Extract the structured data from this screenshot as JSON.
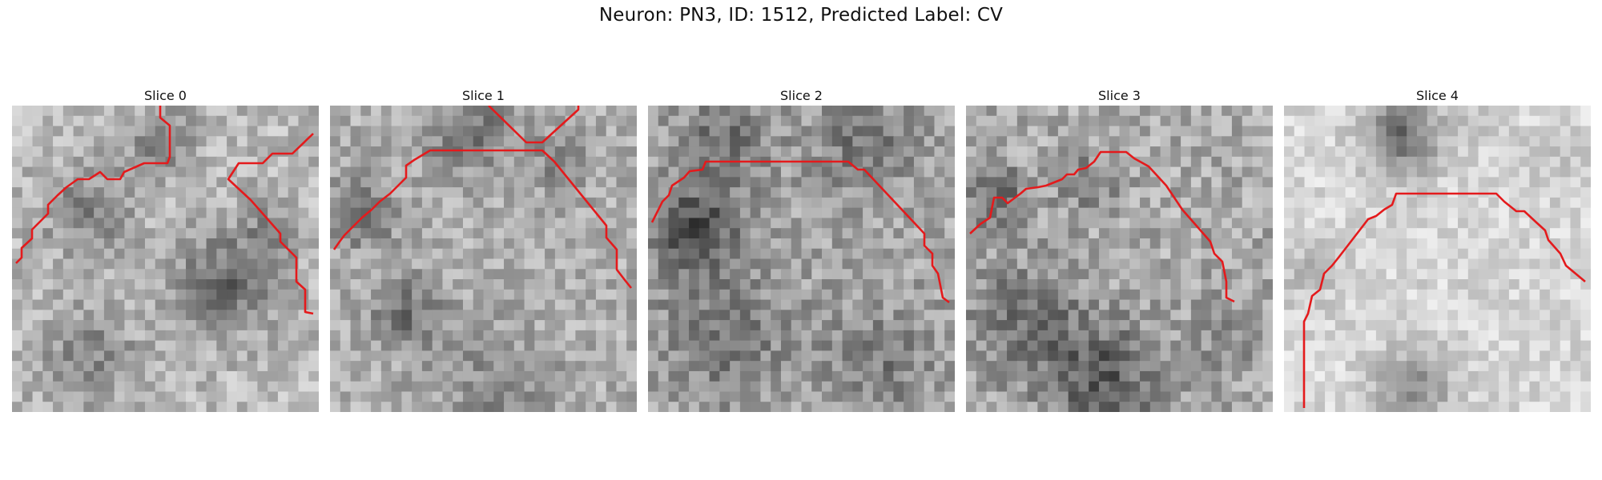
{
  "figure": {
    "title": "Neuron: PN3, ID: 1512, Predicted Label: CV"
  },
  "panels": [
    {
      "label": "Slice 0",
      "trace_color": "#e41a1c"
    },
    {
      "label": "Slice 1",
      "trace_color": "#e41a1c"
    },
    {
      "label": "Slice 2",
      "trace_color": "#e41a1c"
    },
    {
      "label": "Slice 3",
      "trace_color": "#e41a1c"
    },
    {
      "label": "Slice 4",
      "trace_color": "#e41a1c"
    }
  ],
  "image": {
    "colormap": "grayscale",
    "grid_cells": 30
  }
}
